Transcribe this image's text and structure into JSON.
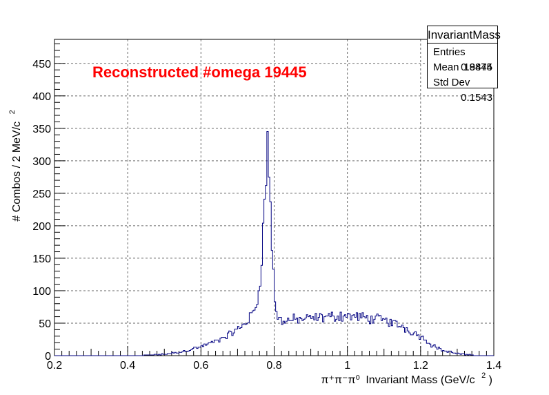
{
  "chart_data": {
    "type": "histogram",
    "title": "Reconstructed #omega 19445",
    "xlabel": "Invariant Mass (GeV/c",
    "xlabel_prefix": "π⁺π⁻π⁰",
    "xlabel_suffix": ")",
    "xlabel_unit_power": "2",
    "ylabel": "# Combos / 2 MeV/c",
    "ylabel_unit_power": "2",
    "xlim": [
      0.2,
      1.4
    ],
    "ylim": [
      0,
      487
    ],
    "bin_width": 0.004,
    "x_ticks": [
      "0.2",
      "0.4",
      "0.6",
      "0.8",
      "1",
      "1.2",
      "1.4"
    ],
    "x_tick_values": [
      0.2,
      0.4,
      0.6,
      0.8,
      1.0,
      1.2,
      1.4
    ],
    "y_ticks": [
      "0",
      "50",
      "100",
      "150",
      "200",
      "250",
      "300",
      "350",
      "400",
      "450"
    ],
    "y_tick_values": [
      0,
      50,
      100,
      150,
      200,
      250,
      300,
      350,
      400,
      450
    ],
    "color": "#000080",
    "grid": true,
    "stats": {
      "name": "InvariantMass",
      "entries_label": "Entries",
      "entries": "19445",
      "mean_label": "Mean",
      "mean": "0.8874",
      "std_label": "Std Dev",
      "std": "0.1543"
    },
    "curve_points": [
      [
        0.44,
        0
      ],
      [
        0.46,
        1
      ],
      [
        0.5,
        2
      ],
      [
        0.55,
        6
      ],
      [
        0.6,
        14
      ],
      [
        0.65,
        24
      ],
      [
        0.7,
        40
      ],
      [
        0.73,
        55
      ],
      [
        0.75,
        75
      ],
      [
        0.76,
        105
      ],
      [
        0.77,
        190
      ],
      [
        0.775,
        245
      ],
      [
        0.78,
        300
      ],
      [
        0.782,
        322
      ],
      [
        0.784,
        312
      ],
      [
        0.788,
        270
      ],
      [
        0.792,
        200
      ],
      [
        0.797,
        140
      ],
      [
        0.8,
        95
      ],
      [
        0.805,
        70
      ],
      [
        0.81,
        58
      ],
      [
        0.82,
        54
      ],
      [
        0.85,
        55
      ],
      [
        0.9,
        57
      ],
      [
        0.95,
        60
      ],
      [
        1.0,
        62
      ],
      [
        1.05,
        58
      ],
      [
        1.1,
        55
      ],
      [
        1.15,
        45
      ],
      [
        1.2,
        30
      ],
      [
        1.23,
        17
      ],
      [
        1.26,
        8
      ],
      [
        1.3,
        3
      ],
      [
        1.34,
        1
      ],
      [
        1.36,
        0
      ]
    ],
    "noise_amplitude": 0.1,
    "noise_seed": 12345
  }
}
